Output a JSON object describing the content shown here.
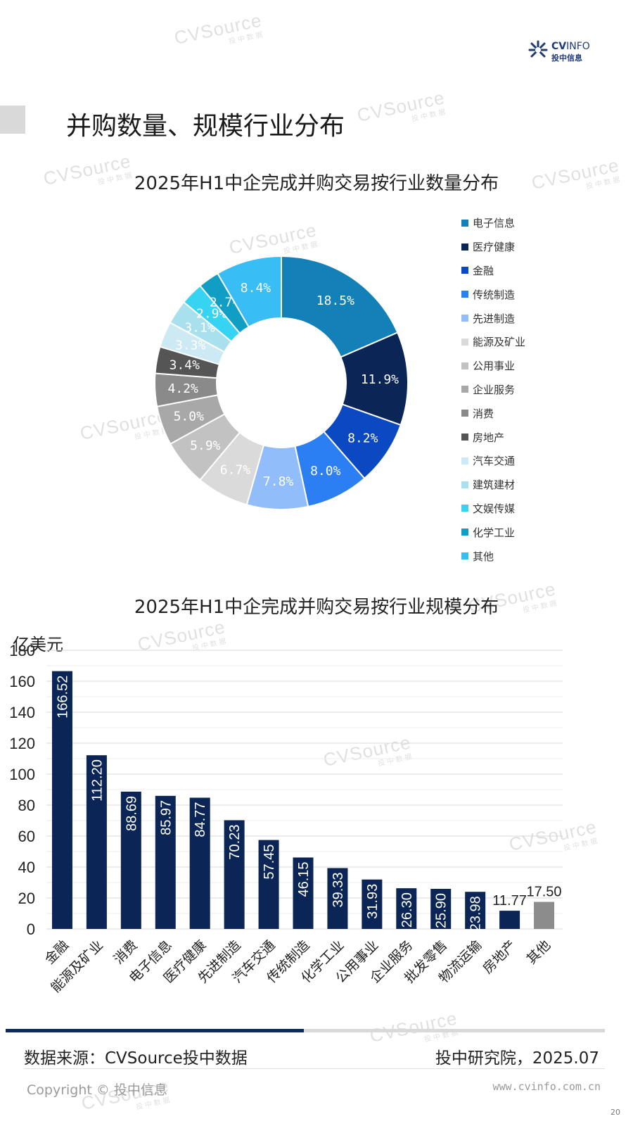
{
  "page": {
    "title": "并购数量、规模行业分布",
    "logo_en_bold": "CV",
    "logo_en_light": "INFO",
    "logo_cn": "投中信息",
    "watermark_big": "CVSource",
    "watermark_small": "投中数据",
    "source": "数据来源：CVSource投中数据",
    "institute": "投中研究院，2025.07",
    "copyright": "Copyright © 投中信息",
    "url": "www.cvinfo.com.cn",
    "page_number": "20"
  },
  "chart_data": [
    {
      "type": "pie",
      "donut": true,
      "title": "2025年H1中企完成并购交易按行业数量分布",
      "legend_position": "right",
      "categories": [
        "电子信息",
        "医疗健康",
        "金融",
        "传统制造",
        "先进制造",
        "能源及矿业",
        "公用事业",
        "企业服务",
        "消费",
        "房地产",
        "汽车交通",
        "建筑建材",
        "文娱传媒",
        "化学工业",
        "其他"
      ],
      "values": [
        18.5,
        11.9,
        8.2,
        8.0,
        7.8,
        6.7,
        5.9,
        5.0,
        4.2,
        3.4,
        3.3,
        3.1,
        2.9,
        2.7,
        8.4
      ],
      "labels": [
        "18.5%",
        "11.9%",
        "8.2%",
        "8.0%",
        "7.8%",
        "6.7%",
        "5.9%",
        "5.0%",
        "4.2%",
        "3.4%",
        "3.3%",
        "3.1%",
        "2.9%",
        "2.7%",
        "8.4%"
      ],
      "colors": [
        "#1380b8",
        "#0b2557",
        "#0a49c2",
        "#2c7ff3",
        "#92bdfb",
        "#dadada",
        "#c2c2c2",
        "#a8a8a8",
        "#8a8a8a",
        "#555555",
        "#cde9f3",
        "#a8e0ee",
        "#37d3f3",
        "#109ec4",
        "#38bdf5"
      ],
      "label_colors": [
        "#ffffff",
        "#ffffff",
        "#ffffff",
        "#ffffff",
        "#ffffff",
        "#ffffff",
        "#ffffff",
        "#ffffff",
        "#ffffff",
        "#ffffff",
        "#ffffff",
        "#ffffff",
        "#ffffff",
        "#ffffff",
        "#ffffff"
      ]
    },
    {
      "type": "bar",
      "title": "2025年H1中企完成并购交易按行业规模分布",
      "ylabel": "亿美元",
      "ylim": [
        0,
        180
      ],
      "yticks": [
        0,
        20,
        40,
        60,
        80,
        100,
        120,
        140,
        160,
        180
      ],
      "grid": true,
      "categories": [
        "金融",
        "能源及矿业",
        "消费",
        "电子信息",
        "医疗健康",
        "先进制造",
        "汽车交通",
        "传统制造",
        "化学工业",
        "公用事业",
        "企业服务",
        "批发零售",
        "物流运输",
        "房地产",
        "其他"
      ],
      "values": [
        166.52,
        112.2,
        88.69,
        85.97,
        84.77,
        70.23,
        57.45,
        46.15,
        39.33,
        31.93,
        26.3,
        25.9,
        23.98,
        11.77,
        17.5
      ],
      "labels": [
        "166.52",
        "112.20",
        "88.69",
        "85.97",
        "84.77",
        "70.23",
        "57.45",
        "46.15",
        "39.33",
        "31.93",
        "26.30",
        "25.90",
        "23.98",
        "11.77",
        "17.50"
      ],
      "label_inside": [
        true,
        true,
        true,
        true,
        true,
        true,
        true,
        true,
        true,
        true,
        true,
        true,
        true,
        false,
        false
      ],
      "colors": {
        "main": "#0b2557",
        "other": "#8c8c8c"
      }
    }
  ]
}
